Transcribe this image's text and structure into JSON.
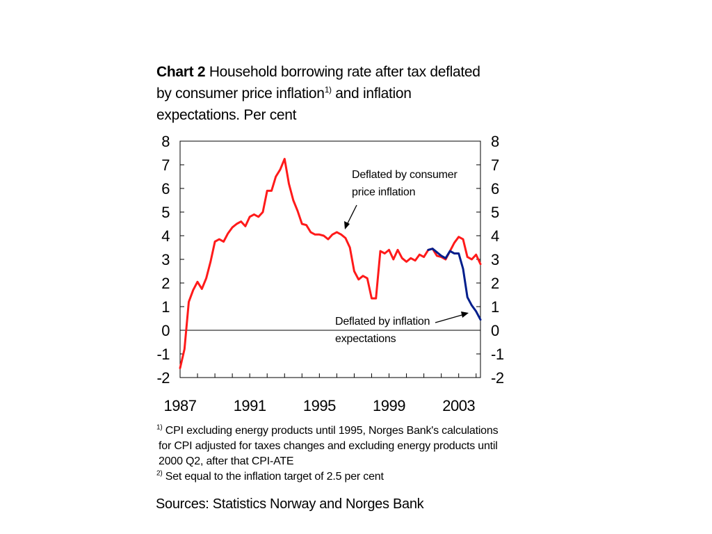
{
  "title": {
    "prefix": "Chart 2",
    "line1": "Household borrowing rate after tax deflated",
    "line2_pre": "by consumer price inflation",
    "line2_sup": "1)",
    "line2_post": " and inflation",
    "line3": "expectations. Per cent"
  },
  "footnotes": {
    "fn1_mark": "1)",
    "fn1_line1": "CPI excluding energy products until 1995, Norges Bank's calculations",
    "fn1_line2": "for CPI adjusted for taxes changes and excluding energy products until",
    "fn1_line3": "2000 Q2, after that CPI-ATE",
    "fn2_mark": "2)",
    "fn2_text": "Set equal to the inflation target of 2.5 per cent"
  },
  "sources": "Sources: Statistics Norway and Norges Bank",
  "chart_data": {
    "type": "line",
    "title": "Household borrowing rate after tax deflated by consumer price inflation and inflation expectations. Per cent",
    "xlabel": "",
    "ylabel": "",
    "xlim": [
      1987,
      2004.25
    ],
    "ylim": [
      -2,
      8
    ],
    "x_ticks": [
      1987,
      1991,
      1995,
      1999,
      2003
    ],
    "y_ticks": [
      -2,
      -1,
      0,
      1,
      2,
      3,
      4,
      5,
      6,
      7,
      8
    ],
    "grid": false,
    "zero_line": true,
    "dual_y_axis": true,
    "series": [
      {
        "name": "Deflated by consumer price inflation",
        "color": "#ff1a1a",
        "x": [
          1987.0,
          1987.25,
          1987.5,
          1987.75,
          1988.0,
          1988.25,
          1988.5,
          1988.75,
          1989.0,
          1989.25,
          1989.5,
          1989.75,
          1990.0,
          1990.25,
          1990.5,
          1990.75,
          1991.0,
          1991.25,
          1991.5,
          1991.75,
          1992.0,
          1992.25,
          1992.5,
          1992.75,
          1993.0,
          1993.25,
          1993.5,
          1993.75,
          1994.0,
          1994.25,
          1994.5,
          1994.75,
          1995.0,
          1995.25,
          1995.5,
          1995.75,
          1996.0,
          1996.25,
          1996.5,
          1996.75,
          1997.0,
          1997.25,
          1997.5,
          1997.75,
          1998.0,
          1998.25,
          1998.5,
          1998.75,
          1999.0,
          1999.25,
          1999.5,
          1999.75,
          2000.0,
          2000.25,
          2000.5,
          2000.75,
          2001.0,
          2001.25,
          2001.5,
          2001.75,
          2002.0,
          2002.25,
          2002.5,
          2002.75,
          2003.0,
          2003.25,
          2003.5,
          2003.75,
          2004.0,
          2004.25
        ],
        "values": [
          -1.6,
          -0.8,
          1.2,
          1.7,
          2.05,
          1.75,
          2.2,
          2.9,
          3.75,
          3.85,
          3.75,
          4.1,
          4.35,
          4.5,
          4.6,
          4.4,
          4.8,
          4.9,
          4.8,
          5.0,
          5.9,
          5.9,
          6.5,
          6.8,
          7.25,
          6.2,
          5.5,
          5.05,
          4.5,
          4.45,
          4.15,
          4.05,
          4.05,
          4.0,
          3.85,
          4.05,
          4.15,
          4.05,
          3.9,
          3.5,
          2.5,
          2.15,
          2.3,
          2.2,
          1.35,
          1.35,
          3.35,
          3.25,
          3.4,
          3.0,
          3.4,
          3.05,
          2.9,
          3.05,
          2.95,
          3.2,
          3.1,
          3.4,
          3.45,
          3.15,
          3.1,
          3.0,
          3.35,
          3.7,
          3.95,
          3.85,
          3.1,
          3.0,
          3.2,
          2.8
        ]
      },
      {
        "name": "Deflated by inflation expectations",
        "color": "#001e8c",
        "x": [
          2001.25,
          2001.5,
          2001.75,
          2002.0,
          2002.25,
          2002.5,
          2002.75,
          2003.0,
          2003.25,
          2003.5,
          2003.75,
          2004.0,
          2004.25
        ],
        "values": [
          3.4,
          3.45,
          3.3,
          3.15,
          3.05,
          3.35,
          3.25,
          3.25,
          2.6,
          1.4,
          1.05,
          0.8,
          0.45
        ]
      }
    ],
    "annotations": [
      {
        "label_line1": "Deflated by consumer",
        "label_line2": "price inflation"
      },
      {
        "label_line1": "Deflated by inflation",
        "label_line2": "expectations"
      }
    ]
  }
}
